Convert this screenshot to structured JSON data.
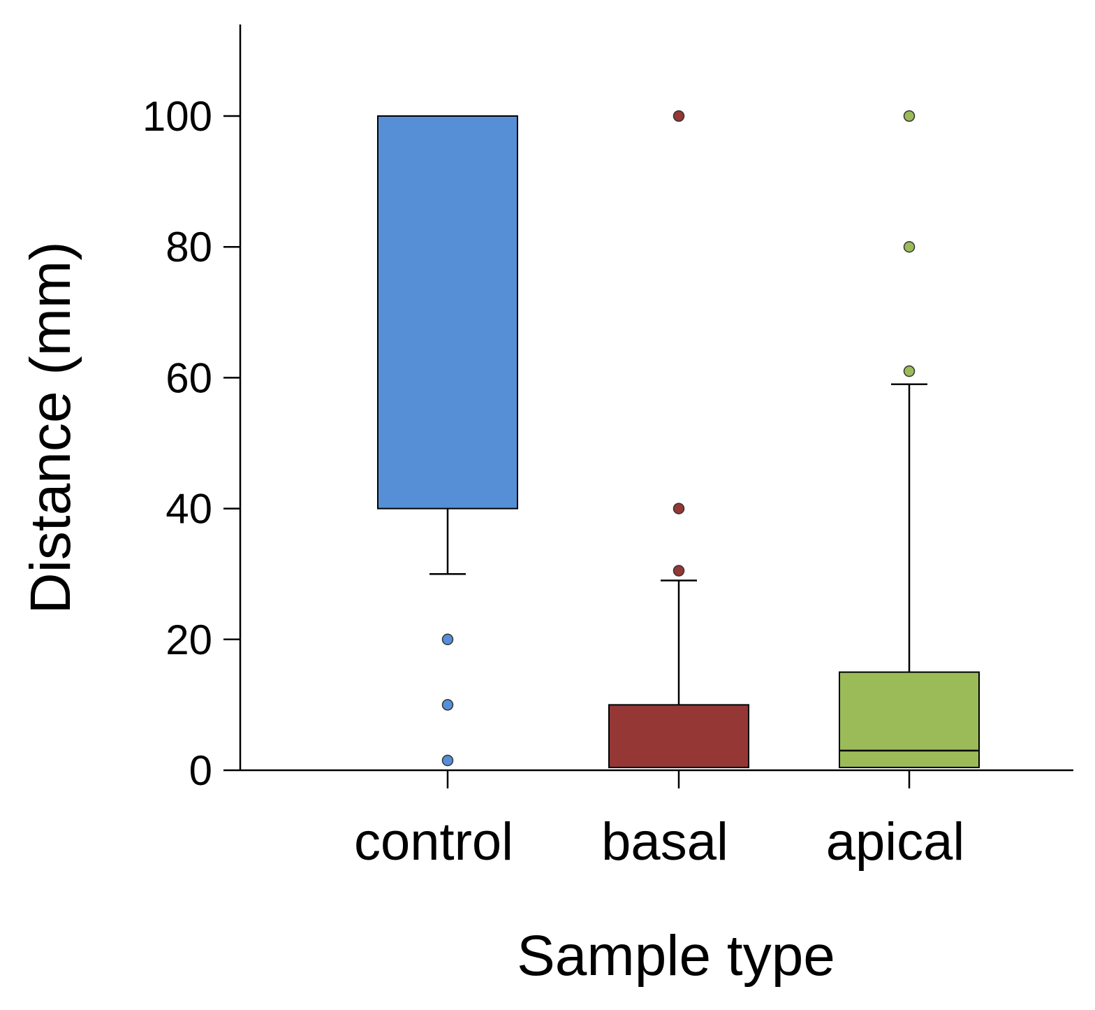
{
  "chart_data": {
    "type": "box",
    "title": "",
    "xlabel": "Sample type",
    "ylabel": "Distance (mm)",
    "ylim": [
      0,
      115
    ],
    "yticks": [
      0,
      20,
      40,
      60,
      80,
      100
    ],
    "ytick_labels": [
      "0",
      "20",
      "40",
      "60",
      "80",
      "100"
    ],
    "grid": false,
    "categories": [
      "control",
      "basal",
      "apical"
    ],
    "boxes": [
      {
        "name": "control",
        "color": "#568fd6",
        "q1": 40,
        "median": 100,
        "q3": 100,
        "whisker_low": 30,
        "whisker_high": 100,
        "outliers": [
          20,
          10,
          1.5
        ]
      },
      {
        "name": "basal",
        "color": "#953735",
        "q1": 0,
        "median": 0,
        "q3": 10,
        "whisker_low": 0,
        "whisker_high": 29,
        "outliers": [
          100,
          40,
          30.5
        ]
      },
      {
        "name": "apical",
        "color": "#9bbb59",
        "q1": 0,
        "median": 3,
        "q3": 15,
        "whisker_low": 0,
        "whisker_high": 59,
        "outliers": [
          100,
          80,
          61
        ]
      }
    ]
  }
}
